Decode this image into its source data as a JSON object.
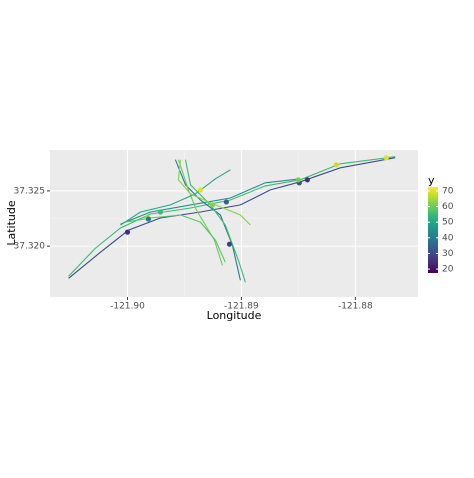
{
  "chart_data": {
    "type": "map",
    "xlabel": "Longitude",
    "ylabel": "Latitude",
    "xlim": [
      -121.9068,
      -121.8745
    ],
    "ylim": [
      37.3154,
      37.3287
    ],
    "xticks": [
      {
        "value": -121.9,
        "label": "-121.90"
      },
      {
        "value": -121.89,
        "label": "-121.89"
      },
      {
        "value": -121.88,
        "label": "-121.88"
      }
    ],
    "yticks": [
      {
        "value": 37.32,
        "label": "37.320"
      },
      {
        "value": 37.325,
        "label": "37.325"
      }
    ],
    "grid": true,
    "colormap": "viridis",
    "roads": [
      {
        "value": 30,
        "x": [
          -121.90517,
          -121.90237,
          -121.89991,
          -121.89711,
          -121.8936,
          -121.89009,
          -121.88746,
          -121.88483,
          -121.88132,
          -121.8765
        ],
        "y": [
          37.31709,
          37.31945,
          37.32145,
          37.32255,
          37.32309,
          37.32373,
          37.32509,
          37.32582,
          37.32709,
          37.328
        ]
      },
      {
        "value": 55,
        "x": [
          -121.90517,
          -121.90281,
          -121.90061,
          -121.89798,
          -121.89447,
          -121.89097,
          -121.8879,
          -121.88483,
          -121.88132,
          -121.8765
        ],
        "y": [
          37.31727,
          37.31982,
          37.32164,
          37.32291,
          37.32345,
          37.32418,
          37.32545,
          37.326,
          37.32745,
          37.32809
        ]
      },
      {
        "value": 45,
        "x": [
          -121.90061,
          -121.89798,
          -121.89447,
          -121.89097,
          -121.8879,
          -121.88483
        ],
        "y": [
          37.322,
          37.32309,
          37.32373,
          37.32436,
          37.32573,
          37.32609
        ]
      },
      {
        "value": 40,
        "x": [
          -121.89579,
          -121.89491,
          -121.8936,
          -121.89184,
          -121.89079,
          -121.89009
        ],
        "y": [
          37.32782,
          37.32555,
          37.32418,
          37.32282,
          37.32009,
          37.31691
        ]
      },
      {
        "value": 55,
        "x": [
          -121.89491,
          -121.89447,
          -121.89272,
          -121.89141,
          -121.89026,
          -121.88965
        ],
        "y": [
          37.32782,
          37.32555,
          37.32373,
          37.32191,
          37.31873,
          37.31673
        ]
      },
      {
        "value": 60,
        "x": [
          -121.89553,
          -121.89465,
          -121.89395,
          -121.89237,
          -121.89167
        ],
        "y": [
          37.32782,
          37.32509,
          37.32327,
          37.32055,
          37.31827
        ]
      },
      {
        "value": 50,
        "x": [
          -121.90061,
          -121.89886,
          -121.89623,
          -121.89404,
          -121.89228,
          -121.89097
        ],
        "y": [
          37.32191,
          37.32309,
          37.32373,
          37.32473,
          37.32609,
          37.32691
        ]
      },
      {
        "value": 58,
        "x": [
          -121.90018,
          -121.89798,
          -121.89535,
          -121.8936,
          -121.89228,
          -121.89141
        ],
        "y": [
          37.32218,
          37.32255,
          37.32282,
          37.32218,
          37.32055,
          37.31855
        ]
      },
      {
        "value": 62,
        "x": [
          -121.89535,
          -121.89553,
          -121.89447,
          -121.89228,
          -121.89009,
          -121.88921
        ],
        "y": [
          37.32782,
          37.326,
          37.32473,
          37.32373,
          37.32282,
          37.32191
        ]
      }
    ],
    "points": {
      "x": [
        -121.9,
        -121.89825,
        -121.89711,
        -121.8936,
        -121.89255,
        -121.89132,
        -121.89105,
        -121.88492,
        -121.88421,
        -121.885,
        -121.88167,
        -121.87729,
        -121.89816
      ],
      "y": [
        37.32127,
        37.32255,
        37.32309,
        37.32509,
        37.32373,
        37.324,
        37.32018,
        37.32573,
        37.326,
        37.326,
        37.32736,
        37.328,
        37.32245
      ],
      "values": [
        25,
        65,
        55,
        70,
        62,
        35,
        28,
        30,
        25,
        60,
        68,
        70,
        40
      ]
    },
    "colorbar": {
      "title": "y",
      "lim": [
        17.5,
        72.5
      ],
      "ticks": [
        20,
        30,
        40,
        50,
        60,
        70
      ]
    }
  }
}
